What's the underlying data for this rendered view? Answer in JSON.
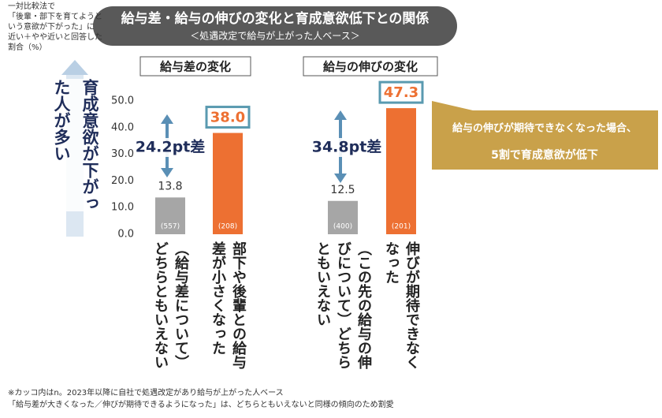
{
  "header": {
    "title": "給与差・給与の伸びの変化と育成意欲低下との関係",
    "subtitle": "＜処遇改定で給与が上がった人ベース＞"
  },
  "note": [
    "一対比較法で",
    "「後輩・部下を育てようと",
    "いう意欲が下がった」に",
    "近い＋やや近いと回答した",
    "割合（%）"
  ],
  "y_annotation": "育成意欲が下がった人が多い",
  "callout": [
    "給与の伸びが期待できなくなった場合、",
    "5割で育成意欲が低下"
  ],
  "footnotes": [
    "※カッコ内はn。2023年以降に自社で処遇改定があり給与が上がった人ベース",
    "「給与差が大きくなった／伸びが期待できるようになった」は、どちらともいえないと同様の傾向のため割愛"
  ],
  "chart_data": [
    {
      "type": "bar",
      "title": "給与差の変化",
      "categories": [
        "（給与差について）どちらともいえない",
        "部下や後輩との給与差が小さくなった"
      ],
      "values": [
        13.8,
        38.0
      ],
      "value_labels": [
        "13.8",
        "38.0"
      ],
      "n_labels": [
        "(557)",
        "(208)"
      ],
      "colors": [
        "#a6a6a6",
        "#ed7032"
      ],
      "difference": "24.2pt差",
      "ylim": [
        0,
        50
      ],
      "yticks": [
        {
          "value": 0,
          "label": "0.0"
        },
        {
          "value": 10,
          "label": "10.0"
        },
        {
          "value": 20,
          "label": "20.0"
        },
        {
          "value": 30,
          "label": "30.0"
        },
        {
          "value": 40,
          "label": "40.0"
        },
        {
          "value": 50,
          "label": "50.0"
        }
      ]
    },
    {
      "type": "bar",
      "title": "給与の伸びの変化",
      "categories": [
        "（この先の給与の伸びについて）どちらともいえない",
        "伸びが期待できなくなった"
      ],
      "values": [
        12.5,
        47.3
      ],
      "n_labels": [
        "(400)",
        "(201)"
      ],
      "colors": [
        "#a6a6a6",
        "#ed7032"
      ],
      "difference": "34.8pt差",
      "ylim": [
        0,
        50
      ]
    }
  ]
}
